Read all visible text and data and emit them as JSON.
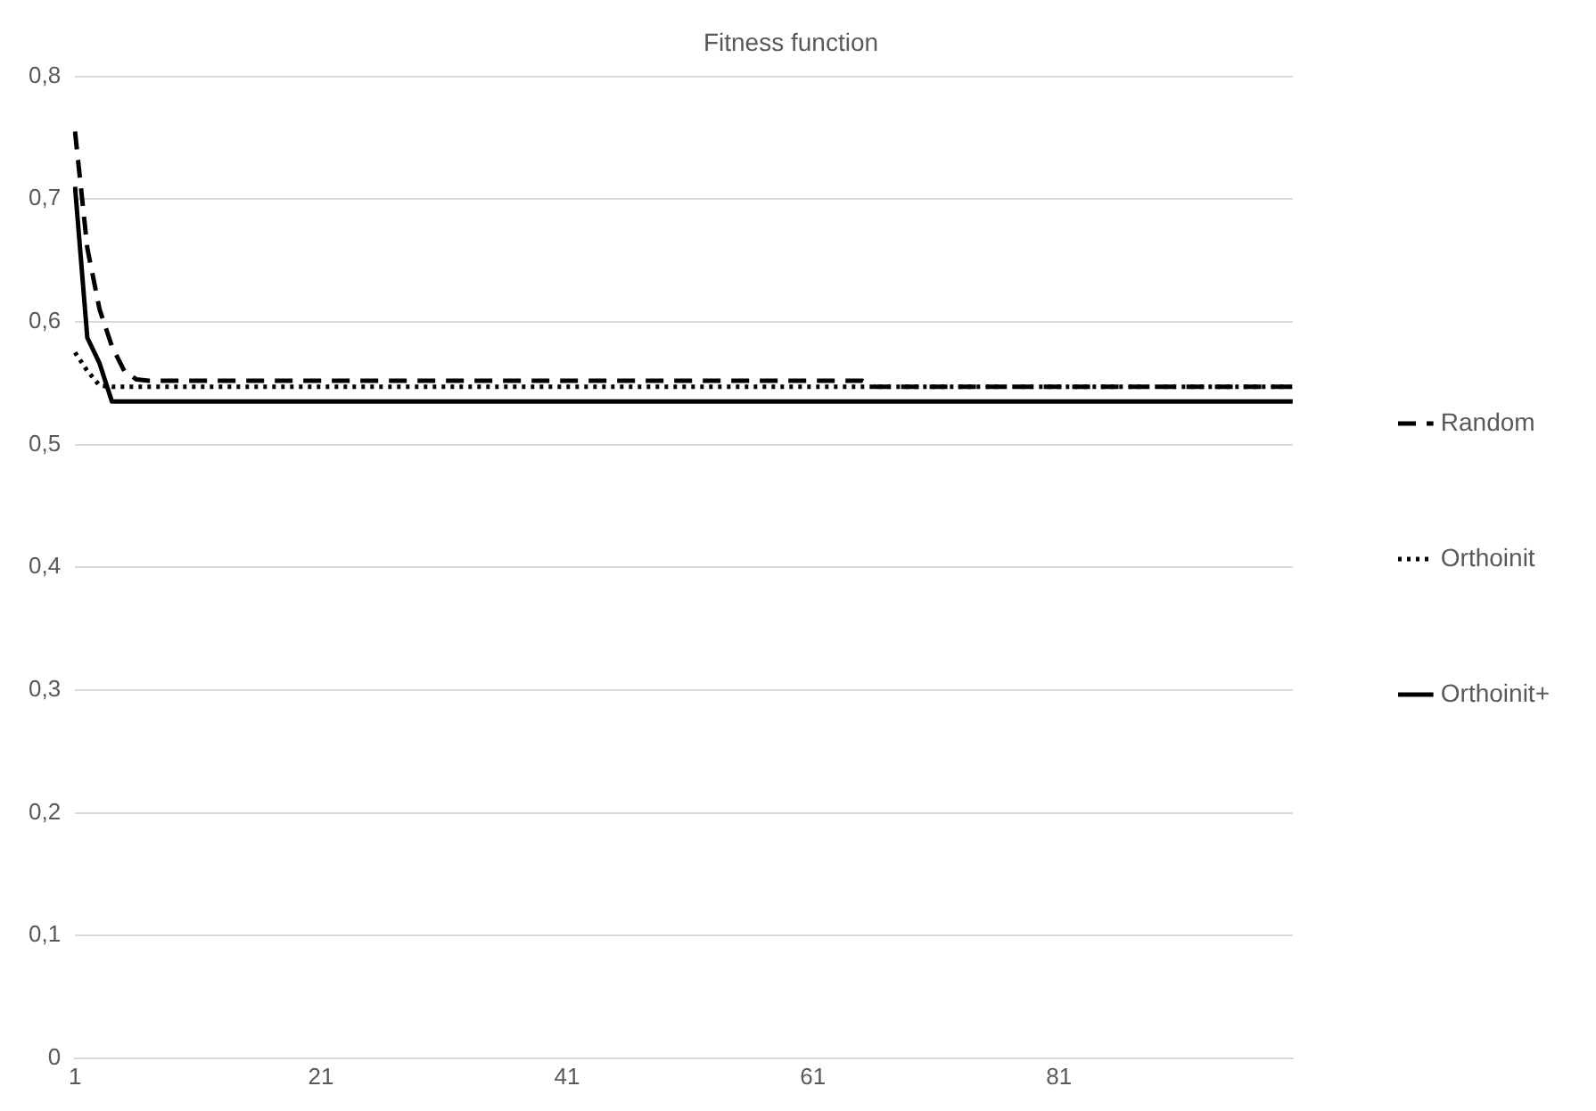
{
  "chart_data": {
    "type": "line",
    "title": "Fitness function",
    "categories": [
      "1",
      null,
      null,
      null,
      null,
      null,
      null,
      null,
      null,
      null,
      null,
      null,
      null,
      null,
      null,
      null,
      null,
      null,
      null,
      null,
      "21",
      null,
      null,
      null,
      null,
      null,
      null,
      null,
      null,
      null,
      null,
      null,
      null,
      null,
      null,
      null,
      null,
      null,
      null,
      null,
      "41",
      null,
      null,
      null,
      null,
      null,
      null,
      null,
      null,
      null,
      null,
      null,
      null,
      null,
      null,
      null,
      null,
      null,
      null,
      null,
      "61",
      null,
      null,
      null,
      null,
      null,
      null,
      null,
      null,
      null,
      null,
      null,
      null,
      null,
      null,
      null,
      null,
      null,
      null,
      null,
      "81",
      null,
      null,
      null,
      null,
      null,
      null,
      null,
      null,
      null,
      null,
      null,
      null,
      null,
      null,
      null,
      null,
      null,
      null,
      null
    ],
    "ylim": [
      0,
      0.8
    ],
    "yticks": [
      {
        "value": 0,
        "label": "0"
      },
      {
        "value": 0.1,
        "label": "0,1"
      },
      {
        "value": 0.2,
        "label": "0,2"
      },
      {
        "value": 0.3,
        "label": "0,3"
      },
      {
        "value": 0.4,
        "label": "0,4"
      },
      {
        "value": 0.5,
        "label": "0,5"
      },
      {
        "value": 0.6,
        "label": "0,6"
      },
      {
        "value": 0.7,
        "label": "0,7"
      },
      {
        "value": 0.8,
        "label": "0,8"
      }
    ],
    "grid": "y",
    "legend": "right",
    "marker": "none",
    "series": [
      {
        "name": "Random",
        "color": "#000000",
        "line_style": "dashed",
        "values": [
          0.755,
          0.66,
          0.61,
          0.58,
          0.56,
          0.553,
          0.552,
          0.552,
          0.552,
          0.552,
          0.552,
          0.552,
          0.552,
          0.552,
          0.552,
          0.552,
          0.552,
          0.552,
          0.552,
          0.552,
          0.552,
          0.552,
          0.552,
          0.552,
          0.552,
          0.552,
          0.552,
          0.552,
          0.552,
          0.552,
          0.552,
          0.552,
          0.552,
          0.552,
          0.552,
          0.552,
          0.552,
          0.552,
          0.552,
          0.552,
          0.552,
          0.552,
          0.552,
          0.552,
          0.552,
          0.552,
          0.552,
          0.552,
          0.552,
          0.552,
          0.552,
          0.552,
          0.552,
          0.552,
          0.552,
          0.552,
          0.552,
          0.552,
          0.552,
          0.552,
          0.552,
          0.552,
          0.552,
          0.552,
          0.552,
          0.547,
          0.547,
          0.547,
          0.547,
          0.547,
          0.547,
          0.547,
          0.547,
          0.547,
          0.547,
          0.547,
          0.547,
          0.547,
          0.547,
          0.547,
          0.547,
          0.547,
          0.547,
          0.547,
          0.547,
          0.547,
          0.547,
          0.547,
          0.547,
          0.547,
          0.547,
          0.547,
          0.547,
          0.547,
          0.547,
          0.547,
          0.547,
          0.547,
          0.547,
          0.547
        ]
      },
      {
        "name": "Orthoinit",
        "color": "#000000",
        "line_style": "dotted",
        "values": [
          0.575,
          0.56,
          0.548,
          0.547,
          0.547,
          0.547,
          0.547,
          0.547,
          0.547,
          0.547,
          0.547,
          0.547,
          0.547,
          0.547,
          0.547,
          0.547,
          0.547,
          0.547,
          0.547,
          0.547,
          0.547,
          0.547,
          0.547,
          0.547,
          0.547,
          0.547,
          0.547,
          0.547,
          0.547,
          0.547,
          0.547,
          0.547,
          0.547,
          0.547,
          0.547,
          0.547,
          0.547,
          0.547,
          0.547,
          0.547,
          0.547,
          0.547,
          0.547,
          0.547,
          0.547,
          0.547,
          0.547,
          0.547,
          0.547,
          0.547,
          0.547,
          0.547,
          0.547,
          0.547,
          0.547,
          0.547,
          0.547,
          0.547,
          0.547,
          0.547,
          0.547,
          0.547,
          0.547,
          0.547,
          0.547,
          0.547,
          0.547,
          0.547,
          0.547,
          0.547,
          0.547,
          0.547,
          0.547,
          0.547,
          0.547,
          0.547,
          0.547,
          0.547,
          0.547,
          0.547,
          0.547,
          0.547,
          0.547,
          0.547,
          0.547,
          0.547,
          0.547,
          0.547,
          0.547,
          0.547,
          0.547,
          0.547,
          0.547,
          0.547,
          0.547,
          0.547,
          0.547,
          0.547,
          0.547,
          0.547
        ]
      },
      {
        "name": "Orthoinit+",
        "color": "#000000",
        "line_style": "solid",
        "values": [
          0.71,
          0.587,
          0.566,
          0.535,
          0.535,
          0.535,
          0.535,
          0.535,
          0.535,
          0.535,
          0.535,
          0.535,
          0.535,
          0.535,
          0.535,
          0.535,
          0.535,
          0.535,
          0.535,
          0.535,
          0.535,
          0.535,
          0.535,
          0.535,
          0.535,
          0.535,
          0.535,
          0.535,
          0.535,
          0.535,
          0.535,
          0.535,
          0.535,
          0.535,
          0.535,
          0.535,
          0.535,
          0.535,
          0.535,
          0.535,
          0.535,
          0.535,
          0.535,
          0.535,
          0.535,
          0.535,
          0.535,
          0.535,
          0.535,
          0.535,
          0.535,
          0.535,
          0.535,
          0.535,
          0.535,
          0.535,
          0.535,
          0.535,
          0.535,
          0.535,
          0.535,
          0.535,
          0.535,
          0.535,
          0.535,
          0.535,
          0.535,
          0.535,
          0.535,
          0.535,
          0.535,
          0.535,
          0.535,
          0.535,
          0.535,
          0.535,
          0.535,
          0.535,
          0.535,
          0.535,
          0.535,
          0.535,
          0.535,
          0.535,
          0.535,
          0.535,
          0.535,
          0.535,
          0.535,
          0.535,
          0.535,
          0.535,
          0.535,
          0.535,
          0.535,
          0.535,
          0.535,
          0.535,
          0.535,
          0.535
        ]
      }
    ]
  }
}
